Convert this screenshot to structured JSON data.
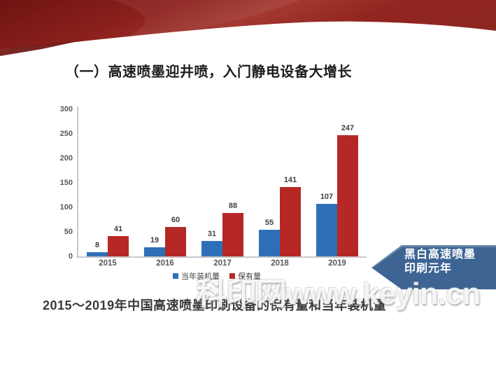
{
  "title": {
    "text": "（一）高速喷墨迎井喷，入门静电设备大增长"
  },
  "chart_data": {
    "type": "bar",
    "title": "",
    "categories": [
      "2015",
      "2016",
      "2017",
      "2018",
      "2019"
    ],
    "series": [
      {
        "name": "当年装机量",
        "color": "#2e70b8",
        "values": [
          8,
          19,
          31,
          55,
          107
        ]
      },
      {
        "name": "保有量",
        "color": "#b52825",
        "values": [
          41,
          60,
          88,
          141,
          247
        ]
      }
    ],
    "xlabel": "",
    "ylabel": "",
    "ylim": [
      0,
      300
    ],
    "yticks": [
      0,
      50,
      100,
      150,
      200,
      250,
      300
    ],
    "grid": false,
    "legend_position": "bottom"
  },
  "callout": {
    "line1": "黑白高速喷墨",
    "line2": "印刷元年",
    "color": "#3d6493"
  },
  "caption": {
    "text": "2015～2019年中国高速喷墨印刷设备的保有量和当年装机量"
  },
  "watermark": {
    "text": "科印网www.keyin.cn"
  },
  "theme": {
    "banner_dark_red": "#701512",
    "banner_mid_red": "#9c2d26",
    "banner_light_red": "#a83a31",
    "axis_gray": "#c9c9c9"
  }
}
